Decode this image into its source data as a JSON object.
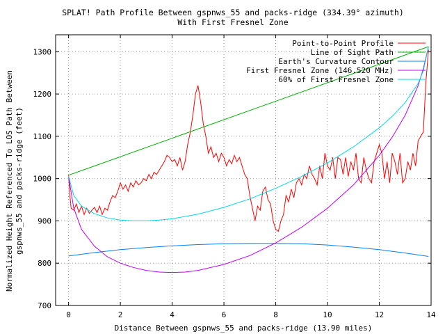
{
  "chart_data": {
    "type": "line",
    "title": "SPLAT! Path Profile Between gspnws_55 and packs-ridge (334.39° azimuth)",
    "subtitle": "With First Fresnel Zone",
    "xlabel": "Distance Between gspnws_55 and packs-ridge (13.90 miles)",
    "ylabel": "Normalized Height Referenced To LOS Path Between",
    "ylabel2": "gspnws_55 and packs-ridge (feet)",
    "xlim": [
      -0.5,
      14
    ],
    "ylim": [
      700,
      1340
    ],
    "xticks": [
      "0",
      "2",
      "4",
      "6",
      "8",
      "10",
      "12",
      "14"
    ],
    "yticks": [
      "700",
      "800",
      "900",
      "1000",
      "1100",
      "1200",
      "1300"
    ],
    "grid": true,
    "legend_position": "top-right",
    "series": [
      {
        "name": "Point-to-Point Profile",
        "color": "#ff0000",
        "x": [
          0,
          0.05,
          0.1,
          0.2,
          0.3,
          0.4,
          0.5,
          0.6,
          0.7,
          0.8,
          0.9,
          1.0,
          1.1,
          1.2,
          1.3,
          1.4,
          1.5,
          1.6,
          1.7,
          1.8,
          1.9,
          2.0,
          2.1,
          2.2,
          2.3,
          2.4,
          2.5,
          2.6,
          2.7,
          2.8,
          2.9,
          3.0,
          3.1,
          3.2,
          3.3,
          3.4,
          3.5,
          3.6,
          3.7,
          3.8,
          3.9,
          4.0,
          4.1,
          4.2,
          4.3,
          4.4,
          4.5,
          4.6,
          4.7,
          4.8,
          4.9,
          5.0,
          5.1,
          5.2,
          5.3,
          5.4,
          5.5,
          5.6,
          5.7,
          5.8,
          5.9,
          6.0,
          6.1,
          6.2,
          6.3,
          6.4,
          6.5,
          6.6,
          6.7,
          6.8,
          6.9,
          7.0,
          7.1,
          7.2,
          7.3,
          7.4,
          7.5,
          7.6,
          7.7,
          7.8,
          7.9,
          8.0,
          8.1,
          8.2,
          8.3,
          8.4,
          8.5,
          8.6,
          8.7,
          8.8,
          8.9,
          9.0,
          9.1,
          9.2,
          9.3,
          9.4,
          9.5,
          9.6,
          9.7,
          9.8,
          9.9,
          10.0,
          10.1,
          10.2,
          10.3,
          10.4,
          10.5,
          10.6,
          10.7,
          10.8,
          10.9,
          11.0,
          11.1,
          11.2,
          11.3,
          11.4,
          11.5,
          11.6,
          11.7,
          11.8,
          11.9,
          12.0,
          12.1,
          12.2,
          12.3,
          12.4,
          12.5,
          12.6,
          12.7,
          12.8,
          12.9,
          13.0,
          13.1,
          13.2,
          13.3,
          13.4,
          13.5,
          13.6,
          13.7,
          13.8,
          13.9
        ],
        "y": [
          1008,
          960,
          930,
          925,
          940,
          920,
          935,
          915,
          930,
          918,
          925,
          932,
          920,
          935,
          915,
          930,
          925,
          945,
          960,
          955,
          970,
          990,
          975,
          985,
          970,
          990,
          980,
          995,
          985,
          990,
          1000,
          995,
          1010,
          1000,
          1015,
          1010,
          1020,
          1030,
          1040,
          1055,
          1050,
          1040,
          1045,
          1030,
          1050,
          1020,
          1040,
          1080,
          1110,
          1150,
          1200,
          1220,
          1180,
          1130,
          1100,
          1060,
          1075,
          1050,
          1060,
          1040,
          1060,
          1050,
          1030,
          1045,
          1035,
          1055,
          1040,
          1050,
          1030,
          1010,
          1000,
          960,
          930,
          900,
          935,
          925,
          970,
          980,
          950,
          940,
          900,
          880,
          875,
          900,
          915,
          960,
          945,
          975,
          955,
          990,
          1000,
          985,
          1010,
          1000,
          1030,
          1010,
          1000,
          985,
          1030,
          1000,
          1060,
          1030,
          1020,
          1050,
          1000,
          1050,
          1045,
          1010,
          1050,
          1005,
          1040,
          1020,
          1060,
          1000,
          990,
          1050,
          1020,
          1000,
          990,
          1040,
          1060,
          1080,
          1060,
          1000,
          1040,
          990,
          1060,
          1040,
          1010,
          1060,
          990,
          1000,
          1040,
          1020,
          1060,
          1030,
          1090,
          1100,
          1110,
          1230,
          1305
        ]
      },
      {
        "name": "Line of Sight Path",
        "color": "#00b000",
        "x": [
          0,
          13.9
        ],
        "y": [
          1008,
          1312
        ]
      },
      {
        "name": "Earth's Curvature Contour",
        "color": "#0080ff",
        "x": [
          0,
          1,
          2,
          3,
          4,
          5,
          6,
          7,
          8,
          9,
          10,
          11,
          12,
          13,
          13.9
        ],
        "y": [
          817,
          825,
          832,
          837,
          841,
          844,
          846,
          847,
          847,
          846,
          843,
          838,
          832,
          824,
          816
        ]
      },
      {
        "name": "First Fresnel Zone (146.520 MHz)",
        "color": "#c000ff",
        "x": [
          0,
          0.2,
          0.5,
          1,
          1.5,
          2,
          2.5,
          3,
          3.5,
          4,
          4.5,
          5,
          6,
          7,
          8,
          9,
          10,
          11,
          12,
          12.5,
          13,
          13.5,
          13.7,
          13.9
        ],
        "y": [
          1005,
          930,
          880,
          840,
          815,
          800,
          790,
          783,
          779,
          778,
          779,
          783,
          797,
          818,
          848,
          885,
          930,
          985,
          1055,
          1098,
          1150,
          1220,
          1260,
          1312
        ]
      },
      {
        "name": "60% of First Fresnel Zone",
        "color": "#00d8e8",
        "x": [
          0,
          0.2,
          0.5,
          1,
          1.5,
          2,
          2.5,
          3,
          3.5,
          4,
          5,
          6,
          7,
          8,
          9,
          10,
          11,
          12,
          12.5,
          13,
          13.5,
          13.7,
          13.9
        ],
        "y": [
          1006,
          960,
          935,
          917,
          907,
          902,
          900,
          900,
          902,
          905,
          916,
          932,
          952,
          977,
          1005,
          1037,
          1075,
          1120,
          1147,
          1180,
          1225,
          1255,
          1312
        ]
      }
    ]
  }
}
